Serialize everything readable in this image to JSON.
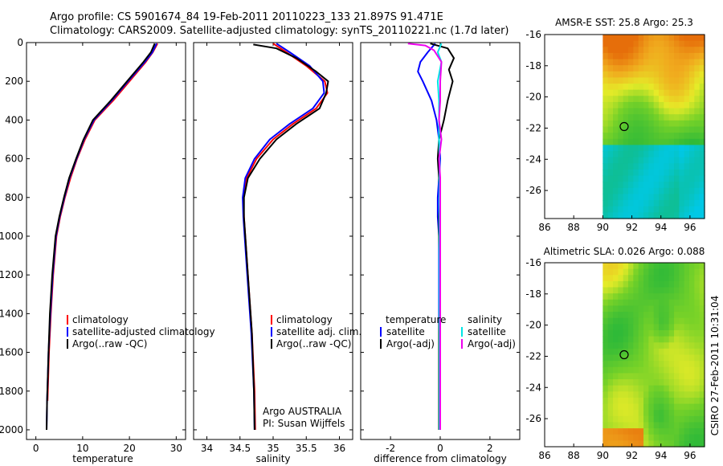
{
  "header": {
    "line1": "Argo profile: CS 5901674_84 19-Feb-2011 20110223_133 21.897S 91.471E",
    "line2": "Climatology: CARS2009. Satellite-adjusted climatology: synTS_20110221.nc (1.7d later)"
  },
  "side_label": "CSIRO 27-Feb-2011 10:31:04",
  "colors": {
    "climatology": "#ff0000",
    "satellite": "#0000ff",
    "argo": "#000000",
    "satellite_salinity": "#00e5e5",
    "argo_adj_salinity": "#ee00ee"
  },
  "chart_data": [
    {
      "type": "line",
      "id": "temperature",
      "xlabel": "temperature",
      "ylabel": "",
      "xlim": [
        -2,
        32
      ],
      "ylim": [
        2050,
        0
      ],
      "xticks": [
        0,
        10,
        20,
        30
      ],
      "yticks": [
        0,
        200,
        400,
        600,
        800,
        1000,
        1200,
        1400,
        1600,
        1800,
        2000
      ],
      "legend": [
        "climatology",
        "satellite-adjusted climatology",
        "Argo(..raw -QC)"
      ],
      "series": [
        {
          "name": "climatology",
          "color": "#ff0000",
          "x": [
            26.0,
            25.0,
            23.5,
            20.0,
            16.5,
            12.6,
            10.5,
            8.8,
            7.4,
            6.2,
            5.2,
            4.4,
            3.7,
            3.2,
            2.8,
            2.5
          ],
          "y": [
            5,
            50,
            100,
            200,
            300,
            400,
            500,
            600,
            700,
            800,
            900,
            1000,
            1200,
            1400,
            1600,
            1850
          ]
        },
        {
          "name": "satellite-adjusted climatology",
          "color": "#0000ff",
          "x": [
            25.8,
            24.9,
            23.3,
            19.7,
            16.2,
            12.4,
            10.3,
            8.7,
            7.2,
            6.1,
            5.1,
            4.3,
            3.6,
            3.1,
            2.7,
            2.4,
            2.3
          ],
          "y": [
            5,
            50,
            100,
            200,
            300,
            400,
            500,
            600,
            700,
            800,
            900,
            1000,
            1200,
            1400,
            1600,
            1850,
            2000
          ]
        },
        {
          "name": "Argo(..raw -QC)",
          "color": "#000000",
          "x": [
            25.4,
            24.6,
            23.0,
            19.5,
            16.0,
            12.2,
            10.2,
            8.6,
            7.1,
            6.0,
            5.0,
            4.2,
            3.5,
            3.0,
            2.7,
            2.4,
            2.3
          ],
          "y": [
            5,
            50,
            100,
            200,
            300,
            400,
            500,
            600,
            700,
            800,
            900,
            1000,
            1200,
            1400,
            1600,
            1850,
            2000
          ]
        }
      ]
    },
    {
      "type": "line",
      "id": "salinity",
      "xlabel": "salinity",
      "xlim": [
        33.8,
        36.2
      ],
      "ylim": [
        2050,
        0
      ],
      "xticks": [
        34,
        34.5,
        35,
        35.5,
        36
      ],
      "legend": [
        "climatology",
        "satellite adj. clim.",
        "Argo(..raw -QC)"
      ],
      "annotations": [
        "Argo AUSTRALIA",
        "PI: Susan Wijffels"
      ],
      "series": [
        {
          "name": "climatology",
          "color": "#ff0000",
          "x": [
            35.0,
            35.2,
            35.5,
            35.78,
            35.82,
            35.65,
            35.3,
            35.0,
            34.75,
            34.6,
            34.55,
            34.56,
            34.62,
            34.68,
            34.72,
            34.73
          ],
          "y": [
            5,
            50,
            120,
            200,
            260,
            340,
            420,
            500,
            600,
            700,
            800,
            900,
            1200,
            1500,
            1800,
            2000
          ]
        },
        {
          "name": "satellite adj. clim.",
          "color": "#0000ff",
          "x": [
            35.05,
            35.25,
            35.55,
            35.75,
            35.77,
            35.6,
            35.25,
            34.95,
            34.72,
            34.58,
            34.54,
            34.55,
            34.61,
            34.67,
            34.71,
            34.72
          ],
          "y": [
            5,
            50,
            120,
            200,
            260,
            340,
            420,
            500,
            600,
            700,
            800,
            900,
            1200,
            1500,
            1800,
            2000
          ]
        },
        {
          "name": "Argo(..raw -QC)",
          "color": "#000000",
          "x": [
            34.7,
            35.05,
            35.35,
            35.65,
            35.83,
            35.8,
            35.7,
            35.35,
            35.05,
            34.8,
            34.62,
            34.56,
            34.56,
            34.62,
            34.68,
            34.71,
            34.72
          ],
          "y": [
            10,
            30,
            80,
            150,
            200,
            260,
            340,
            420,
            500,
            600,
            700,
            800,
            900,
            1200,
            1500,
            1800,
            2000
          ]
        }
      ]
    },
    {
      "type": "line",
      "id": "difference",
      "xlabel": "difference from climatology",
      "xlim": [
        -3.2,
        3.2
      ],
      "ylim": [
        2050,
        0
      ],
      "xticks": [
        -2,
        0,
        2
      ],
      "legend_left_title": "temperature",
      "legend_right_title": "salinity",
      "legend": [
        "satellite",
        "Argo(-adj)",
        "satellite",
        "Argo(-adj)"
      ],
      "series": [
        {
          "name": "temperature satellite",
          "color": "#0000ff",
          "x": [
            -0.2,
            -0.5,
            -0.8,
            -0.9,
            -0.7,
            -0.35,
            -0.15,
            -0.05,
            0.0,
            -0.05,
            -0.1,
            -0.1,
            -0.05,
            -0.05,
            -0.05,
            -0.05,
            -0.05
          ],
          "y": [
            5,
            50,
            100,
            150,
            200,
            300,
            400,
            500,
            600,
            700,
            800,
            900,
            1000,
            1200,
            1500,
            1800,
            2000
          ]
        },
        {
          "name": "temperature Argo(-adj)",
          "color": "#000000",
          "x": [
            -0.4,
            0.3,
            0.55,
            0.35,
            0.5,
            0.3,
            0.15,
            -0.05,
            -0.1,
            -0.05,
            0.0,
            -0.05,
            -0.05,
            0.0,
            -0.05,
            -0.05,
            -0.05
          ],
          "y": [
            5,
            30,
            80,
            140,
            200,
            300,
            400,
            500,
            600,
            700,
            800,
            900,
            1000,
            1200,
            1500,
            1800,
            2000
          ]
        },
        {
          "name": "salinity satellite",
          "color": "#00e5e5",
          "x": [
            0.05,
            -0.1,
            0.05,
            -0.1,
            -0.05,
            -0.05,
            -0.05,
            -0.03,
            -0.03,
            -0.03,
            -0.03,
            -0.03,
            -0.03,
            -0.03,
            -0.03,
            -0.03
          ],
          "y": [
            5,
            50,
            100,
            200,
            300,
            400,
            500,
            600,
            700,
            800,
            900,
            1000,
            1200,
            1500,
            1800,
            2000
          ]
        },
        {
          "name": "salinity Argo(-adj)",
          "color": "#ee00ee",
          "x": [
            -1.3,
            -0.6,
            -0.25,
            0.05,
            0.0,
            0.0,
            -0.05,
            0.05,
            -0.05,
            0.0,
            0.0,
            0.0,
            0.0,
            0.0,
            0.0,
            0.0
          ],
          "y": [
            5,
            15,
            40,
            100,
            200,
            300,
            400,
            500,
            600,
            700,
            800,
            900,
            1200,
            1500,
            1800,
            2000
          ]
        }
      ]
    },
    {
      "type": "heatmap",
      "id": "sst_map",
      "title": "AMSR-E SST: 25.8 Argo: 25.3",
      "xlim": [
        86,
        97
      ],
      "ylim": [
        -27.8,
        -16
      ],
      "xticks": [
        86,
        88,
        90,
        92,
        94,
        96
      ],
      "yticks": [
        -16,
        -18,
        -20,
        -22,
        -24,
        -26
      ],
      "data_lon_range": [
        90,
        97
      ],
      "marker": {
        "lon": 91.47,
        "lat": -21.9
      }
    },
    {
      "type": "heatmap",
      "id": "sla_map",
      "title": "Altimetric SLA: 0.026 Argo: 0.088",
      "xlim": [
        86,
        97
      ],
      "ylim": [
        -27.8,
        -16
      ],
      "xticks": [
        86,
        88,
        90,
        92,
        94,
        96
      ],
      "yticks": [
        -16,
        -18,
        -20,
        -22,
        -24,
        -26
      ],
      "data_lon_range": [
        90,
        97
      ],
      "marker": {
        "lon": 91.47,
        "lat": -21.9
      }
    }
  ]
}
